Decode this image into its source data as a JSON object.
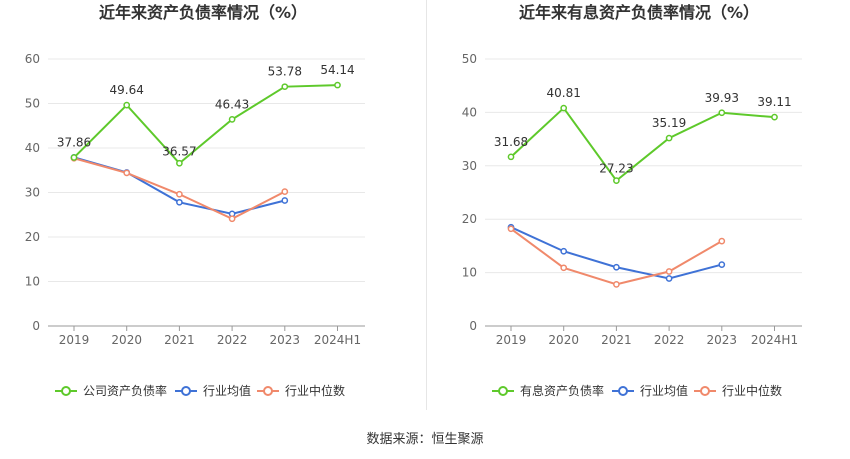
{
  "source_label": "数据来源：恒生聚源",
  "colors": {
    "main": "#5ec92b",
    "avg": "#3f72d6",
    "median": "#f0896b",
    "grid": "#e8e8e8",
    "axis": "#999999"
  },
  "chart_data": [
    {
      "type": "line",
      "title": "近年来资产负债率情况（%）",
      "categories": [
        "2019",
        "2020",
        "2021",
        "2022",
        "2023",
        "2024H1"
      ],
      "ylim": [
        0,
        60
      ],
      "yticks": [
        0,
        10,
        20,
        30,
        40,
        50,
        60
      ],
      "grid": true,
      "legend_position": "bottom",
      "series": [
        {
          "name": "公司资产负债率",
          "color": "#5ec92b",
          "labeled": true,
          "values": [
            37.86,
            49.64,
            36.57,
            46.43,
            53.78,
            54.14
          ]
        },
        {
          "name": "行业均值",
          "color": "#3f72d6",
          "labeled": false,
          "values": [
            37.9,
            34.5,
            27.8,
            25.2,
            28.2,
            null
          ]
        },
        {
          "name": "行业中位数",
          "color": "#f0896b",
          "labeled": false,
          "values": [
            37.7,
            34.4,
            29.6,
            24.1,
            30.2,
            null
          ]
        }
      ]
    },
    {
      "type": "line",
      "title": "近年来有息资产负债率情况（%）",
      "categories": [
        "2019",
        "2020",
        "2021",
        "2022",
        "2023",
        "2024H1"
      ],
      "ylim": [
        0,
        50
      ],
      "yticks": [
        0,
        10,
        20,
        30,
        40,
        50
      ],
      "grid": true,
      "legend_position": "bottom",
      "series": [
        {
          "name": "有息资产负债率",
          "color": "#5ec92b",
          "labeled": true,
          "values": [
            31.68,
            40.81,
            27.23,
            35.19,
            39.93,
            39.11
          ]
        },
        {
          "name": "行业均值",
          "color": "#3f72d6",
          "labeled": false,
          "values": [
            18.5,
            14.0,
            11.0,
            8.9,
            11.5,
            null
          ]
        },
        {
          "name": "行业中位数",
          "color": "#f0896b",
          "labeled": false,
          "values": [
            18.2,
            10.9,
            7.8,
            10.2,
            15.9,
            null
          ]
        }
      ]
    }
  ]
}
